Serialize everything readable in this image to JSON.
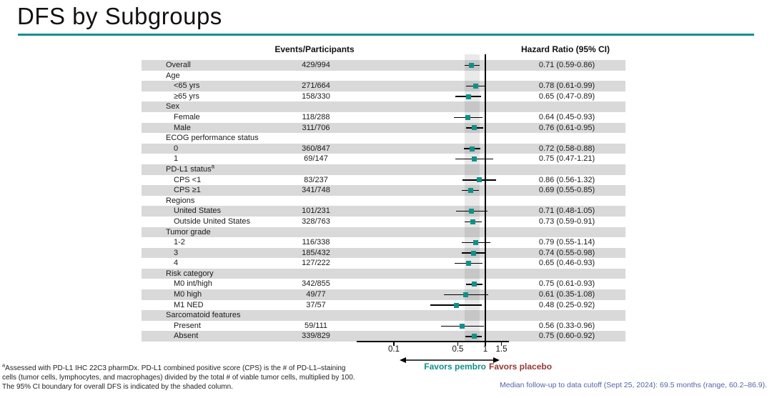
{
  "title": "DFS by Subgroups",
  "columns": {
    "events": "Events/Participants",
    "hazard_ratio": "Hazard Ratio (95% CI)"
  },
  "chart_data": {
    "type": "forest",
    "x_axis": {
      "scale": "log",
      "ticks": [
        0.1,
        0.5,
        1,
        1.5
      ],
      "tick_labels": [
        "0.1",
        "0.5",
        "1",
        "1.5"
      ],
      "reference_line": 1.0,
      "shaded_band": [
        0.59,
        0.86
      ],
      "shaded_band_note": "95% CI boundary for overall DFS"
    },
    "favors_left": "Favors pembro",
    "favors_right": "Favors placebo",
    "rows": [
      {
        "kind": "item",
        "indent": 0,
        "label": "Overall",
        "events": "429/994",
        "hr": 0.71,
        "lo": 0.59,
        "hi": 0.86,
        "hr_text": "0.71 (0.59-0.86)"
      },
      {
        "kind": "group",
        "indent": 0,
        "label": "Age"
      },
      {
        "kind": "item",
        "indent": 1,
        "label": "<65 yrs",
        "events": "271/664",
        "hr": 0.78,
        "lo": 0.61,
        "hi": 0.99,
        "hr_text": "0.78 (0.61-0.99)"
      },
      {
        "kind": "item",
        "indent": 1,
        "label": "≥65 yrs",
        "events": "158/330",
        "hr": 0.65,
        "lo": 0.47,
        "hi": 0.89,
        "hr_text": "0.65 (0.47-0.89)"
      },
      {
        "kind": "group",
        "indent": 0,
        "label": "Sex"
      },
      {
        "kind": "item",
        "indent": 1,
        "label": "Female",
        "events": "118/288",
        "hr": 0.64,
        "lo": 0.45,
        "hi": 0.93,
        "hr_text": "0.64 (0.45-0.93)"
      },
      {
        "kind": "item",
        "indent": 1,
        "label": "Male",
        "events": "311/706",
        "hr": 0.76,
        "lo": 0.61,
        "hi": 0.95,
        "hr_text": "0.76 (0.61-0.95)"
      },
      {
        "kind": "group",
        "indent": 0,
        "label": "ECOG performance status"
      },
      {
        "kind": "item",
        "indent": 1,
        "label": "0",
        "events": "360/847",
        "hr": 0.72,
        "lo": 0.58,
        "hi": 0.88,
        "hr_text": "0.72 (0.58-0.88)"
      },
      {
        "kind": "item",
        "indent": 1,
        "label": "1",
        "events": "69/147",
        "hr": 0.75,
        "lo": 0.47,
        "hi": 1.21,
        "hr_text": "0.75 (0.47-1.21)"
      },
      {
        "kind": "group",
        "indent": 0,
        "label": "PD-L1 status",
        "sup": "a"
      },
      {
        "kind": "item",
        "indent": 1,
        "label": "CPS <1",
        "events": "83/237",
        "hr": 0.86,
        "lo": 0.56,
        "hi": 1.32,
        "hr_text": "0.86 (0.56-1.32)"
      },
      {
        "kind": "item",
        "indent": 1,
        "label": "CPS ≥1",
        "events": "341/748",
        "hr": 0.69,
        "lo": 0.55,
        "hi": 0.85,
        "hr_text": "0.69 (0.55-0.85)"
      },
      {
        "kind": "group",
        "indent": 0,
        "label": "Regions"
      },
      {
        "kind": "item",
        "indent": 1,
        "label": "United States",
        "events": "101/231",
        "hr": 0.71,
        "lo": 0.48,
        "hi": 1.05,
        "hr_text": "0.71 (0.48-1.05)"
      },
      {
        "kind": "item",
        "indent": 1,
        "label": "Outside United States",
        "events": "328/763",
        "hr": 0.73,
        "lo": 0.59,
        "hi": 0.91,
        "hr_text": "0.73 (0.59-0.91)"
      },
      {
        "kind": "group",
        "indent": 0,
        "label": "Tumor grade"
      },
      {
        "kind": "item",
        "indent": 1,
        "label": "1-2",
        "events": "116/338",
        "hr": 0.79,
        "lo": 0.55,
        "hi": 1.14,
        "hr_text": "0.79 (0.55-1.14)"
      },
      {
        "kind": "item",
        "indent": 1,
        "label": "3",
        "events": "185/432",
        "hr": 0.74,
        "lo": 0.55,
        "hi": 0.98,
        "hr_text": "0.74 (0.55-0.98)"
      },
      {
        "kind": "item",
        "indent": 1,
        "label": "4",
        "events": "127/222",
        "hr": 0.65,
        "lo": 0.46,
        "hi": 0.93,
        "hr_text": "0.65 (0.46-0.93)"
      },
      {
        "kind": "group",
        "indent": 0,
        "label": "Risk category"
      },
      {
        "kind": "item",
        "indent": 1,
        "label": "M0 int/high",
        "events": "342/855",
        "hr": 0.75,
        "lo": 0.61,
        "hi": 0.93,
        "hr_text": "0.75 (0.61-0.93)"
      },
      {
        "kind": "item",
        "indent": 1,
        "label": "M0 high",
        "events": "49/77",
        "hr": 0.61,
        "lo": 0.35,
        "hi": 1.08,
        "hr_text": "0.61 (0.35-1.08)"
      },
      {
        "kind": "item",
        "indent": 1,
        "label": "M1 NED",
        "events": "37/57",
        "hr": 0.48,
        "lo": 0.25,
        "hi": 0.92,
        "hr_text": "0.48 (0.25-0.92)"
      },
      {
        "kind": "group",
        "indent": 0,
        "label": "Sarcomatoid features"
      },
      {
        "kind": "item",
        "indent": 1,
        "label": "Present",
        "events": "59/111",
        "hr": 0.56,
        "lo": 0.33,
        "hi": 0.96,
        "hr_text": "0.56 (0.33-0.96)"
      },
      {
        "kind": "item",
        "indent": 1,
        "label": "Absent",
        "events": "339/829",
        "hr": 0.75,
        "lo": 0.6,
        "hi": 0.92,
        "hr_text": "0.75 (0.60-0.92)"
      }
    ]
  },
  "footnotes": {
    "lines": [
      {
        "sup": "a",
        "text": "Assessed with PD-L1 IHC 22C3 pharmDx. PD-L1 combined positive score (CPS) is the # of PD-L1–staining"
      },
      {
        "text": "cells (tumor cells, lymphocytes, and macrophages) divided by the total # of viable tumor cells, multiplied by 100."
      },
      {
        "text": "The 95% CI boundary for overall DFS is indicated by the shaded column."
      }
    ]
  },
  "footer": {
    "median_followup": "Median follow-up to data cutoff (Sept 25, 2024): 69.5 months (range, 60.2–86.9)."
  },
  "colors": {
    "teal": "#0F9189",
    "dark_red": "#943634",
    "footer_blue": "#5563A9",
    "row_gray": "#D9D9D9"
  }
}
